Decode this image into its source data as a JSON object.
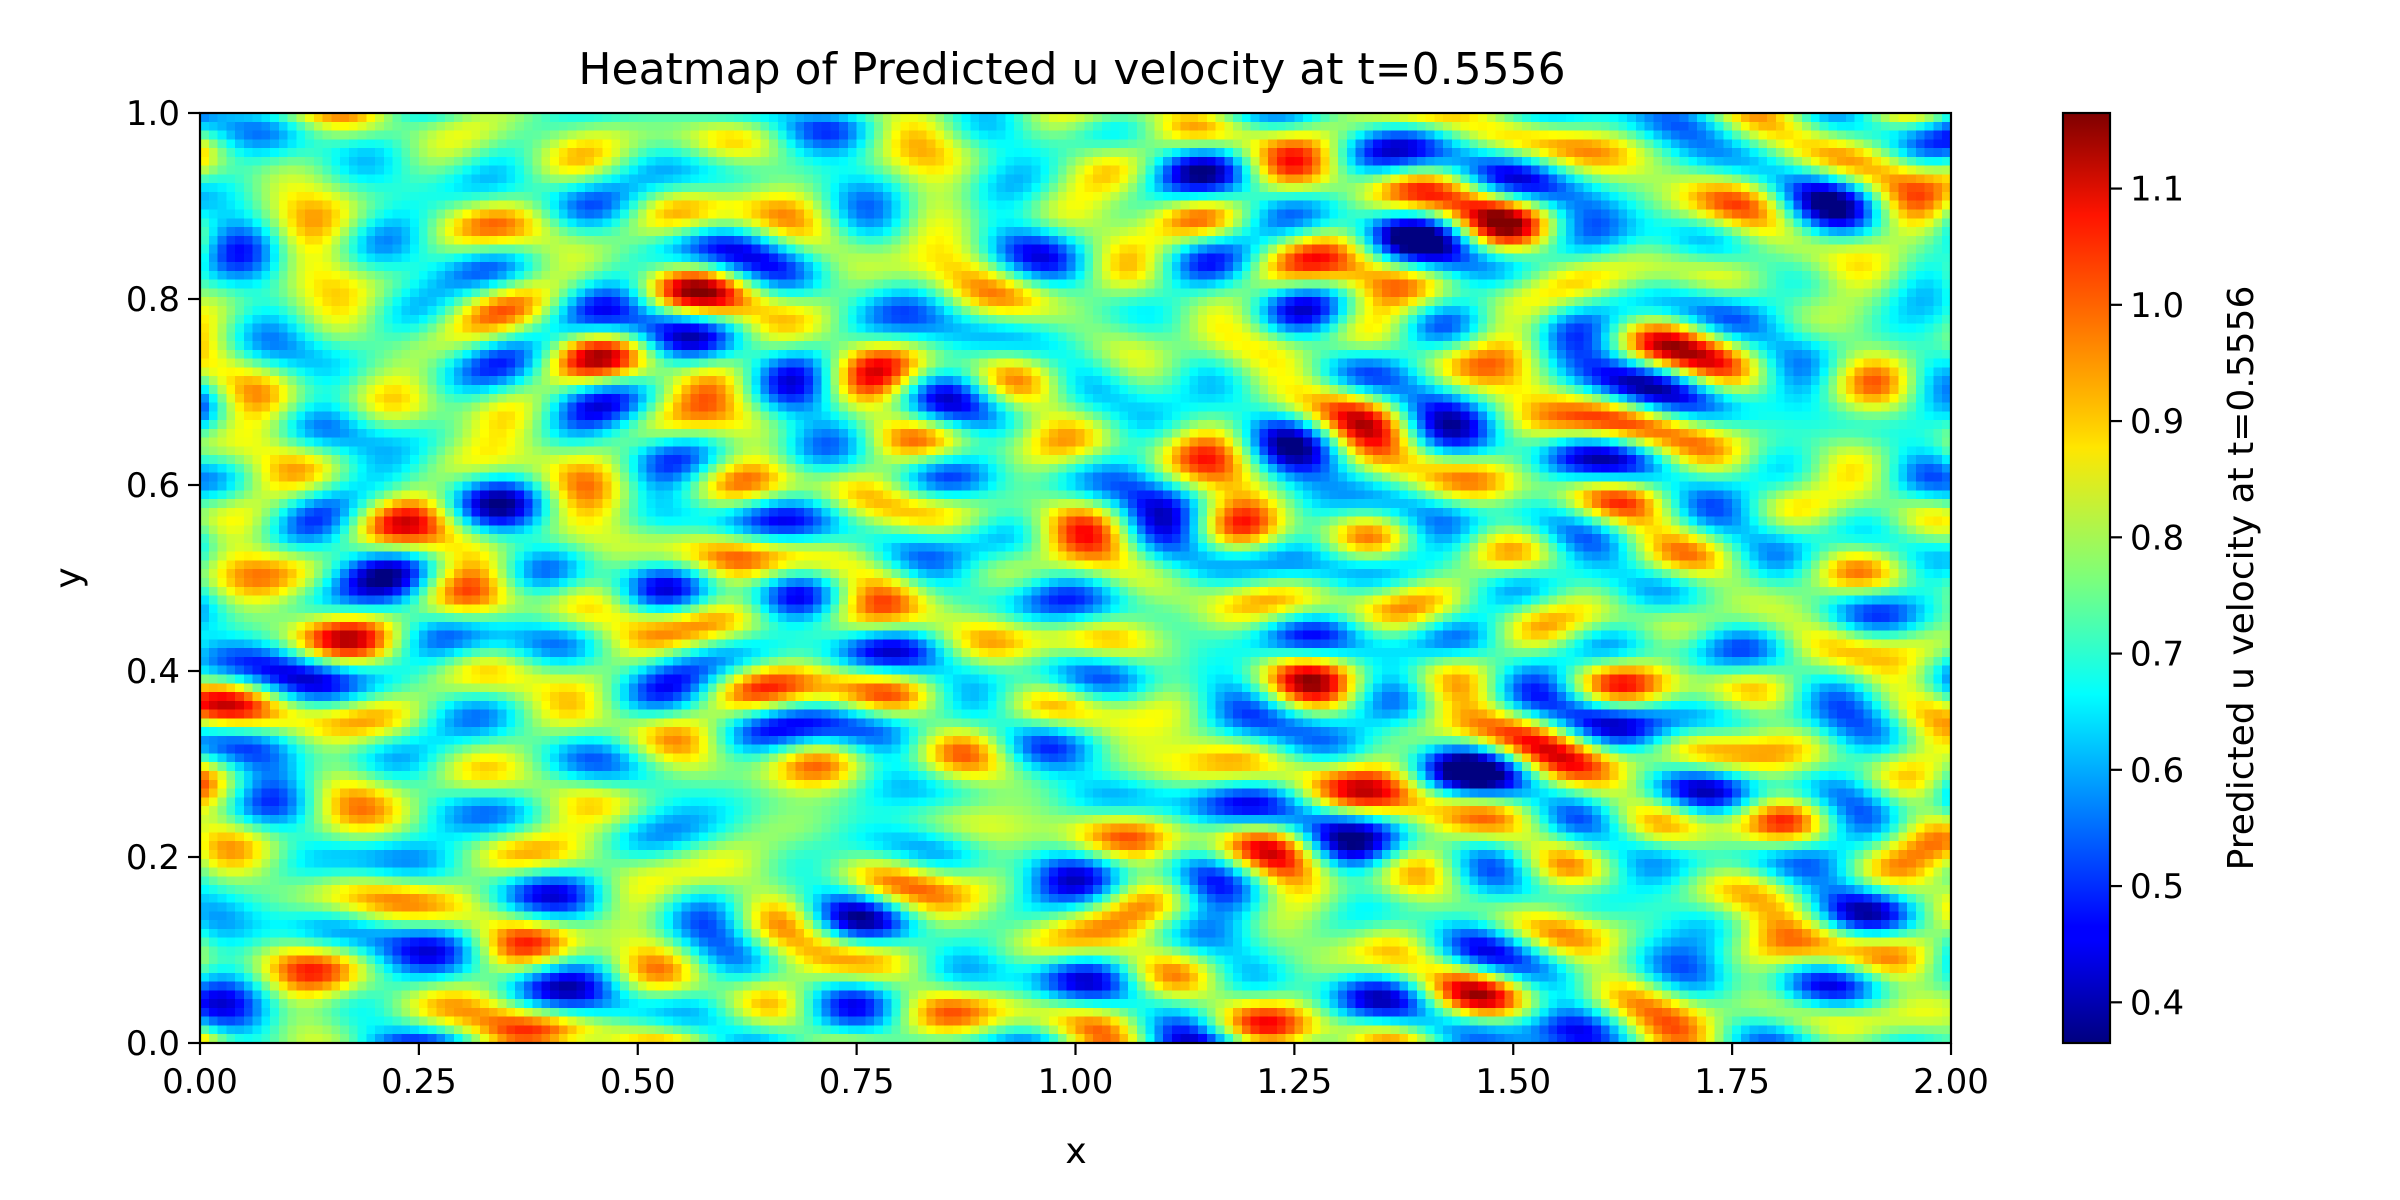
{
  "chart_data": {
    "type": "heatmap",
    "title": "Heatmap of Predicted u velocity at t=0.5556",
    "xlabel": "x",
    "ylabel": "y",
    "xlim": [
      0.0,
      2.0
    ],
    "ylim": [
      0.0,
      1.0
    ],
    "x_ticks": [
      0.0,
      0.25,
      0.5,
      0.75,
      1.0,
      1.25,
      1.5,
      1.75,
      2.0
    ],
    "x_tick_labels": [
      "0.00",
      "0.25",
      "0.50",
      "0.75",
      "1.00",
      "1.25",
      "1.50",
      "1.75",
      "2.00"
    ],
    "y_ticks": [
      0.0,
      0.2,
      0.4,
      0.6,
      0.8,
      1.0
    ],
    "y_tick_labels": [
      "0.0",
      "0.2",
      "0.4",
      "0.6",
      "0.8",
      "1.0"
    ],
    "colormap": "jet",
    "colorbar": {
      "label": "Predicted u velocity at t=0.5556",
      "vmin": 0.365,
      "vmax": 1.165,
      "ticks": [
        0.4,
        0.5,
        0.6,
        0.7,
        0.8,
        0.9,
        1.0,
        1.1
      ],
      "tick_labels": [
        "0.4",
        "0.5",
        "0.6",
        "0.7",
        "0.8",
        "0.9",
        "1.0",
        "1.1"
      ]
    },
    "field": {
      "grid_nx": 200,
      "grid_ny": 106,
      "mean": 0.74,
      "range": [
        0.365,
        1.165
      ],
      "pattern": "fine-scale random turbulent structure"
    }
  }
}
